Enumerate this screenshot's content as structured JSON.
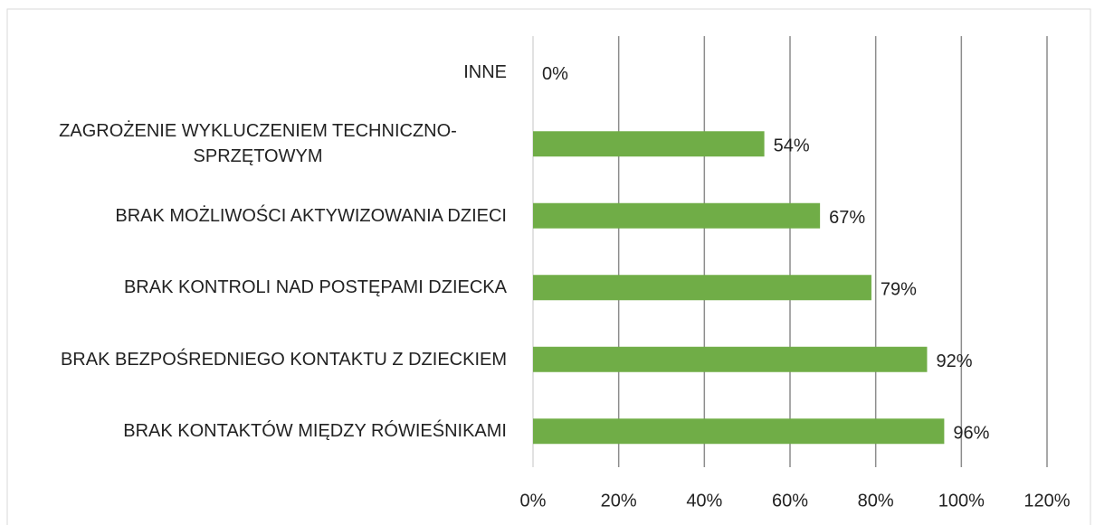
{
  "chart_data": {
    "type": "hbar",
    "categories": [
      "INNE",
      "ZAGROŻENIE WYKLUCZENIEM TECHNICZNO-SPRZĘTOWYM",
      "BRAK MOŻLIWOŚCI AKTYWIZOWANIA DZIECI",
      "BRAK KONTROLI NAD POSTĘPAMI DZIECKA",
      "BRAK BEZPOŚREDNIEGO KONTAKTU Z DZIECKIEM",
      "BRAK KONTAKTÓW MIĘDZY RÓWIEŚNIKAMI"
    ],
    "values": [
      0,
      54,
      67,
      79,
      92,
      96
    ],
    "value_labels": [
      "0%",
      "54%",
      "67%",
      "79%",
      "92%",
      "96%"
    ],
    "color": "#70ad47",
    "xlim": [
      0,
      120
    ],
    "xticks": [
      {
        "value": 0,
        "label": "0%"
      },
      {
        "value": 20,
        "label": "20%"
      },
      {
        "value": 40,
        "label": "40%"
      },
      {
        "value": 60,
        "label": "60%"
      },
      {
        "value": 80,
        "label": "80%"
      },
      {
        "value": 100,
        "label": "100%"
      },
      {
        "value": 120,
        "label": "120%"
      }
    ],
    "grid": true
  }
}
